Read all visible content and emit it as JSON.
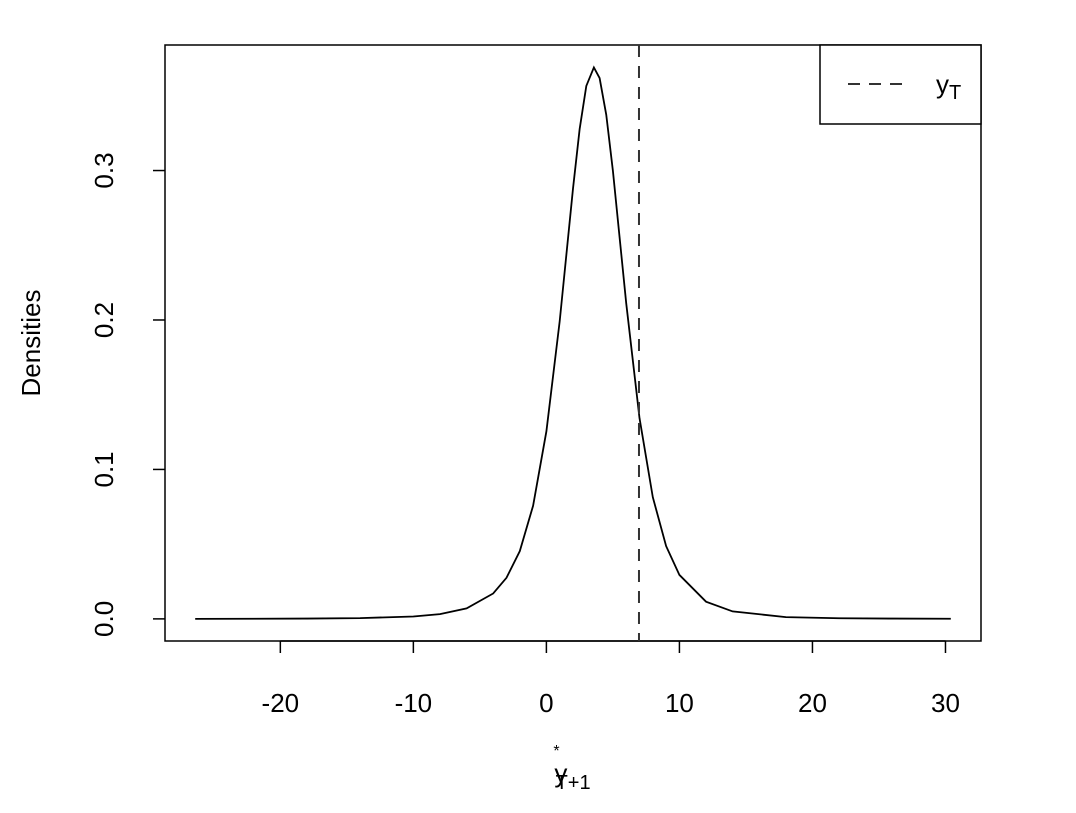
{
  "chart_data": {
    "type": "line",
    "x_label": {
      "base": "y",
      "sup": "*",
      "sub": "T+1"
    },
    "y_label": "Densities",
    "x": [
      -26.4,
      -22,
      -18,
      -14,
      -10,
      -8,
      -6,
      -4,
      -3,
      -2,
      -1,
      0,
      1,
      2,
      2.5,
      3,
      3.57,
      4,
      4.5,
      5,
      6,
      7,
      8,
      9,
      10,
      12,
      14,
      18,
      22,
      26,
      30.4
    ],
    "series": [
      {
        "color": "#000000",
        "values": [
          0.0,
          0.0001,
          0.0002,
          0.0005,
          0.0016,
          0.0032,
          0.007,
          0.017,
          0.0275,
          0.0453,
          0.0757,
          0.1255,
          0.1992,
          0.2879,
          0.3278,
          0.3566,
          0.369,
          0.3619,
          0.3373,
          0.2998,
          0.2112,
          0.1343,
          0.0814,
          0.0487,
          0.0294,
          0.0115,
          0.005,
          0.0012,
          0.0004,
          0.0002,
          0.0001
        ]
      }
    ],
    "vline": {
      "x": 6.96,
      "color": "#333333",
      "style": "dashed",
      "name": {
        "base": "y",
        "sub": "T"
      }
    },
    "legend": "top-right",
    "xlim": [
      -28.67,
      32.67
    ],
    "ylim": [
      -0.0148,
      0.384
    ],
    "xticks": [
      -20,
      -10,
      0,
      10,
      20,
      30
    ],
    "yticks": [
      {
        "value": 0,
        "label": "0.0"
      },
      0.1,
      0.2,
      0.3
    ]
  }
}
